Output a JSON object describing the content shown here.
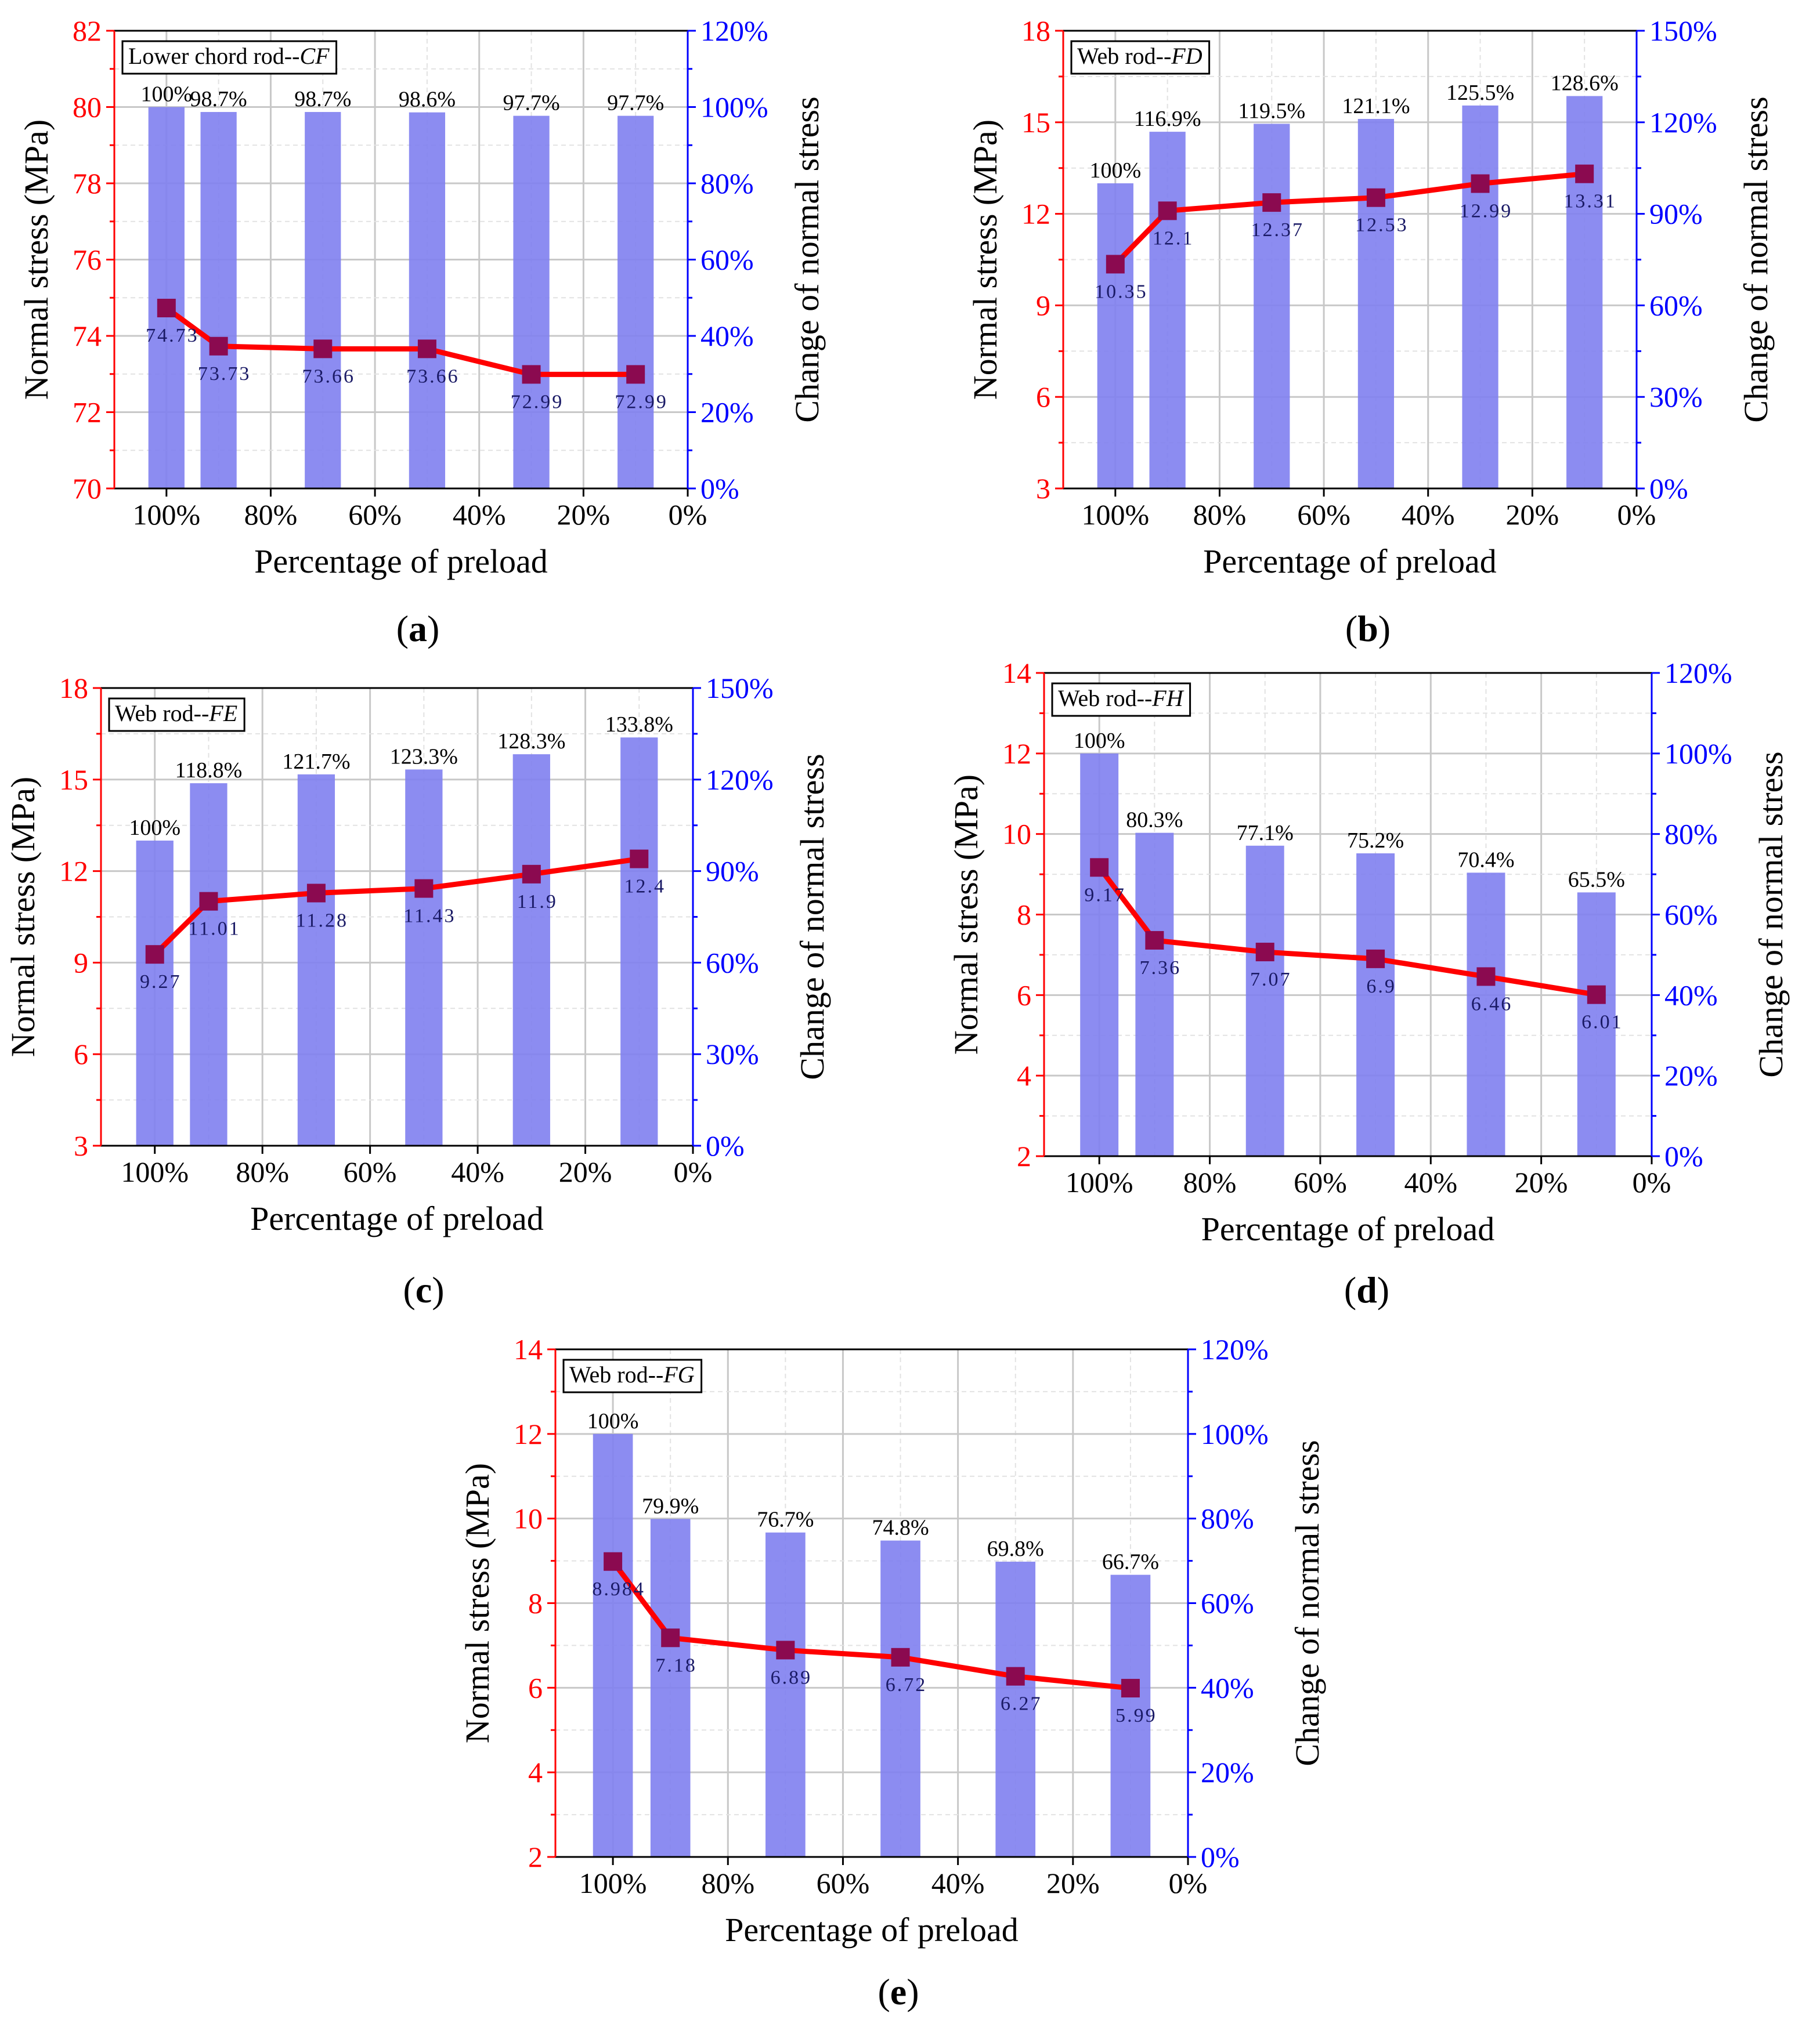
{
  "colors": {
    "left_axis": "#ff0000",
    "right_axis": "#0000ff",
    "bar_fill": "#8080f0",
    "line": "#ff0000",
    "marker": "#8b0a50",
    "grid": "#cccccc",
    "frame": "#000000"
  },
  "chart_data": [
    {
      "id": "a",
      "panel_label": "(a)",
      "type": "bar+line",
      "legend_title_prefix": "Lower chord rod--",
      "legend_title_italic": "CF",
      "xlabel": "Percentage of preload",
      "ylabel": "Normal stress (MPa)",
      "ylabel_right": "Change of normal stress",
      "x_ticks": [
        "100%",
        "80%",
        "60%",
        "40%",
        "20%",
        "0%"
      ],
      "x_tick_values": [
        100,
        80,
        60,
        40,
        20,
        0
      ],
      "xlim": [
        110,
        0
      ],
      "ylim": [
        70,
        82
      ],
      "y_ticks": [
        "70",
        "72",
        "74",
        "76",
        "78",
        "80",
        "82"
      ],
      "y_tick_values": [
        70,
        72,
        74,
        76,
        78,
        80,
        82
      ],
      "y2lim": [
        0,
        120
      ],
      "y2_ticks": [
        "0%",
        "20%",
        "40%",
        "60%",
        "80%",
        "100%",
        "120%"
      ],
      "y2_tick_values": [
        0,
        20,
        40,
        60,
        80,
        100,
        120
      ],
      "x": [
        100,
        90,
        70,
        50,
        30,
        10
      ],
      "stress": [
        74.73,
        73.73,
        73.66,
        73.66,
        72.99,
        72.99
      ],
      "stress_labels": [
        "74.73",
        "73.73",
        "73.66",
        "73.66",
        "72.99",
        "72.99"
      ],
      "change": [
        100,
        98.7,
        98.7,
        98.6,
        97.7,
        97.7
      ],
      "change_labels": [
        "100%",
        "98.7%",
        "98.7%",
        "98.6%",
        "97.7%",
        "97.7%"
      ],
      "grid": true
    },
    {
      "id": "b",
      "panel_label": "(b)",
      "type": "bar+line",
      "legend_title_prefix": "Web rod--",
      "legend_title_italic": "FD",
      "xlabel": "Percentage of preload",
      "ylabel": "Normal stress (MPa)",
      "ylabel_right": "Change of normal stress",
      "x_ticks": [
        "100%",
        "80%",
        "60%",
        "40%",
        "20%",
        "0%"
      ],
      "x_tick_values": [
        100,
        80,
        60,
        40,
        20,
        0
      ],
      "xlim": [
        110,
        0
      ],
      "ylim": [
        3,
        18
      ],
      "y_ticks": [
        "3",
        "6",
        "9",
        "12",
        "15",
        "18"
      ],
      "y_tick_values": [
        3,
        6,
        9,
        12,
        15,
        18
      ],
      "y2lim": [
        0,
        150
      ],
      "y2_ticks": [
        "0%",
        "30%",
        "60%",
        "90%",
        "120%",
        "150%"
      ],
      "y2_tick_values": [
        0,
        30,
        60,
        90,
        120,
        150
      ],
      "x": [
        100,
        90,
        70,
        50,
        30,
        10
      ],
      "stress": [
        10.35,
        12.1,
        12.37,
        12.53,
        12.99,
        13.31
      ],
      "stress_labels": [
        "10.35",
        "12.1",
        "12.37",
        "12.53",
        "12.99",
        "13.31"
      ],
      "change": [
        100,
        116.9,
        119.5,
        121.1,
        125.5,
        128.6
      ],
      "change_labels": [
        "100%",
        "116.9%",
        "119.5%",
        "121.1%",
        "125.5%",
        "128.6%"
      ],
      "grid": true
    },
    {
      "id": "c",
      "panel_label": "(c)",
      "type": "bar+line",
      "legend_title_prefix": "Web rod--",
      "legend_title_italic": "FE",
      "xlabel": "Percentage of preload",
      "ylabel": "Normal stress (MPa)",
      "ylabel_right": "Change of normal stress",
      "x_ticks": [
        "100%",
        "80%",
        "60%",
        "40%",
        "20%",
        "0%"
      ],
      "x_tick_values": [
        100,
        80,
        60,
        40,
        20,
        0
      ],
      "xlim": [
        110,
        0
      ],
      "ylim": [
        3,
        18
      ],
      "y_ticks": [
        "3",
        "6",
        "9",
        "12",
        "15",
        "18"
      ],
      "y_tick_values": [
        3,
        6,
        9,
        12,
        15,
        18
      ],
      "y2lim": [
        0,
        150
      ],
      "y2_ticks": [
        "0%",
        "30%",
        "60%",
        "90%",
        "120%",
        "150%"
      ],
      "y2_tick_values": [
        0,
        30,
        60,
        90,
        120,
        150
      ],
      "x": [
        100,
        90,
        70,
        50,
        30,
        10
      ],
      "stress": [
        9.27,
        11.01,
        11.28,
        11.43,
        11.9,
        12.4
      ],
      "stress_labels": [
        "9.27",
        "11.01",
        "11.28",
        "11.43",
        "11.9",
        "12.4"
      ],
      "change": [
        100,
        118.8,
        121.7,
        123.3,
        128.3,
        133.8
      ],
      "change_labels": [
        "100%",
        "118.8%",
        "121.7%",
        "123.3%",
        "128.3%",
        "133.8%"
      ],
      "grid": true
    },
    {
      "id": "d",
      "panel_label": "(d)",
      "type": "bar+line",
      "legend_title_prefix": "Web rod--",
      "legend_title_italic": "FH",
      "xlabel": "Percentage of preload",
      "ylabel": "Normal stress (MPa)",
      "ylabel_right": "Change of normal stress",
      "x_ticks": [
        "100%",
        "80%",
        "60%",
        "40%",
        "20%",
        "0%"
      ],
      "x_tick_values": [
        100,
        80,
        60,
        40,
        20,
        0
      ],
      "xlim": [
        110,
        0
      ],
      "ylim": [
        2,
        14
      ],
      "y_ticks": [
        "2",
        "4",
        "6",
        "8",
        "10",
        "12",
        "14"
      ],
      "y_tick_values": [
        2,
        4,
        6,
        8,
        10,
        12,
        14
      ],
      "y2lim": [
        0,
        120
      ],
      "y2_ticks": [
        "0%",
        "20%",
        "40%",
        "60%",
        "80%",
        "100%",
        "120%"
      ],
      "y2_tick_values": [
        0,
        20,
        40,
        60,
        80,
        100,
        120
      ],
      "x": [
        100,
        90,
        70,
        50,
        30,
        10
      ],
      "stress": [
        9.17,
        7.36,
        7.07,
        6.9,
        6.46,
        6.01
      ],
      "stress_labels": [
        "9.17",
        "7.36",
        "7.07",
        "6.9",
        "6.46",
        "6.01"
      ],
      "change": [
        100,
        80.3,
        77.1,
        75.2,
        70.4,
        65.5
      ],
      "change_labels": [
        "100%",
        "80.3%",
        "77.1%",
        "75.2%",
        "70.4%",
        "65.5%"
      ],
      "grid": true
    },
    {
      "id": "e",
      "panel_label": "(e)",
      "type": "bar+line",
      "legend_title_prefix": "Web rod--",
      "legend_title_italic": "FG",
      "xlabel": "Percentage of preload",
      "ylabel": "Normal stress (MPa)",
      "ylabel_right": "Change of normal stress",
      "x_ticks": [
        "100%",
        "80%",
        "60%",
        "40%",
        "20%",
        "0%"
      ],
      "x_tick_values": [
        100,
        80,
        60,
        40,
        20,
        0
      ],
      "xlim": [
        110,
        0
      ],
      "ylim": [
        2,
        14
      ],
      "y_ticks": [
        "2",
        "4",
        "6",
        "8",
        "10",
        "12",
        "14"
      ],
      "y_tick_values": [
        2,
        4,
        6,
        8,
        10,
        12,
        14
      ],
      "y2lim": [
        0,
        120
      ],
      "y2_ticks": [
        "0%",
        "20%",
        "40%",
        "60%",
        "80%",
        "100%",
        "120%"
      ],
      "y2_tick_values": [
        0,
        20,
        40,
        60,
        80,
        100,
        120
      ],
      "x": [
        100,
        90,
        70,
        50,
        30,
        10
      ],
      "stress": [
        8.984,
        7.18,
        6.89,
        6.72,
        6.27,
        5.99
      ],
      "stress_labels": [
        "8.984",
        "7.18",
        "6.89",
        "6.72",
        "6.27",
        "5.99"
      ],
      "change": [
        100,
        79.9,
        76.7,
        74.8,
        69.8,
        66.7
      ],
      "change_labels": [
        "100%",
        "79.9%",
        "76.7%",
        "74.8%",
        "69.8%",
        "66.7%"
      ],
      "grid": true
    }
  ]
}
